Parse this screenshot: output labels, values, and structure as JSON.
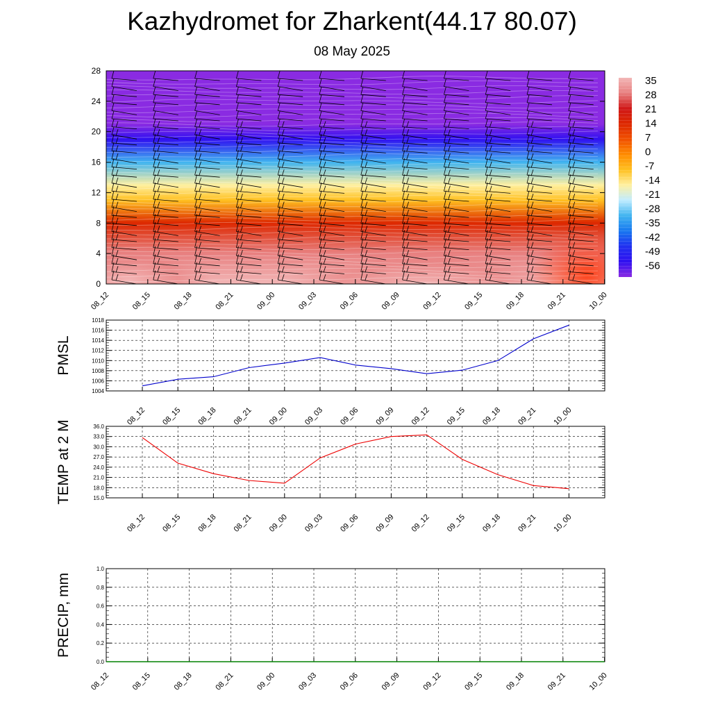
{
  "title": "Kazhydromet for Zharkent(44.17 80.07)",
  "subtitle": "08 May 2025",
  "time_labels": [
    "08_12",
    "08_15",
    "08_18",
    "08_21",
    "09_00",
    "09_03",
    "09_06",
    "09_09",
    "09_12",
    "09_15",
    "09_18",
    "09_21",
    "10_00"
  ],
  "chart_data": [
    {
      "type": "heatmap",
      "title": "",
      "y_ticks": [
        "0",
        "4",
        "8",
        "12",
        "16",
        "20",
        "24",
        "28"
      ],
      "ylim": [
        0,
        28
      ],
      "colorbar": {
        "labels": [
          "35",
          "28",
          "21",
          "14",
          "7",
          "0",
          "-7",
          "-14",
          "-21",
          "-28",
          "-35",
          "-42",
          "-49",
          "-56"
        ],
        "colors": [
          "#f2b6b6",
          "#e88080",
          "#d01818",
          "#dd2800",
          "#f05000",
          "#ff8c00",
          "#ffc020",
          "#fff0a0",
          "#c0ecff",
          "#40b4f0",
          "#1878f0",
          "#2030f0",
          "#3010f0",
          "#8a2be2"
        ]
      },
      "temperature_profile": [
        {
          "z": 0,
          "t": 32
        },
        {
          "z": 4,
          "t": 22
        },
        {
          "z": 8,
          "t": 8
        },
        {
          "z": 11,
          "t": -10
        },
        {
          "z": 13,
          "t": -18
        },
        {
          "z": 16,
          "t": -35
        },
        {
          "z": 19,
          "t": -55
        },
        {
          "z": 21,
          "t": -60
        },
        {
          "z": 23,
          "t": -62
        },
        {
          "z": 28,
          "t": -63
        }
      ],
      "wind_barbs": "on",
      "grid": "off"
    },
    {
      "type": "line",
      "ylabel": "PMSL",
      "ylim": [
        1004,
        1018
      ],
      "y_ticks": [
        "1004",
        "1006",
        "1008",
        "1010",
        "1012",
        "1014",
        "1016",
        "1018"
      ],
      "series": [
        {
          "color": "#0000cc",
          "values": [
            1005.0,
            1006.3,
            1006.8,
            1008.6,
            1009.5,
            1010.6,
            1009.1,
            1008.4,
            1007.4,
            1008.1,
            1010.0,
            1014.3,
            1017.0
          ]
        }
      ],
      "grid": "dashed"
    },
    {
      "type": "line",
      "ylabel": "TEMP at 2 M",
      "ylim": [
        15,
        36
      ],
      "y_ticks": [
        "15.0",
        "18.0",
        "21.0",
        "24.0",
        "27.0",
        "30.0",
        "33.0",
        "36.0"
      ],
      "series": [
        {
          "color": "#ee0000",
          "values": [
            32.7,
            25.2,
            22.1,
            20.1,
            19.3,
            26.7,
            30.8,
            33.0,
            33.5,
            26.3,
            21.8,
            18.6,
            17.7
          ]
        }
      ],
      "grid": "dashed"
    },
    {
      "type": "line",
      "ylabel": "PRECIP, mm",
      "ylim": [
        0,
        1
      ],
      "y_ticks": [
        "0.0",
        "0.2",
        "0.4",
        "0.6",
        "0.8",
        "1.0"
      ],
      "series": [
        {
          "color": "#008000",
          "values": [
            0,
            0,
            0,
            0,
            0,
            0,
            0,
            0,
            0,
            0,
            0,
            0,
            0
          ]
        }
      ],
      "grid": "dashed"
    }
  ]
}
